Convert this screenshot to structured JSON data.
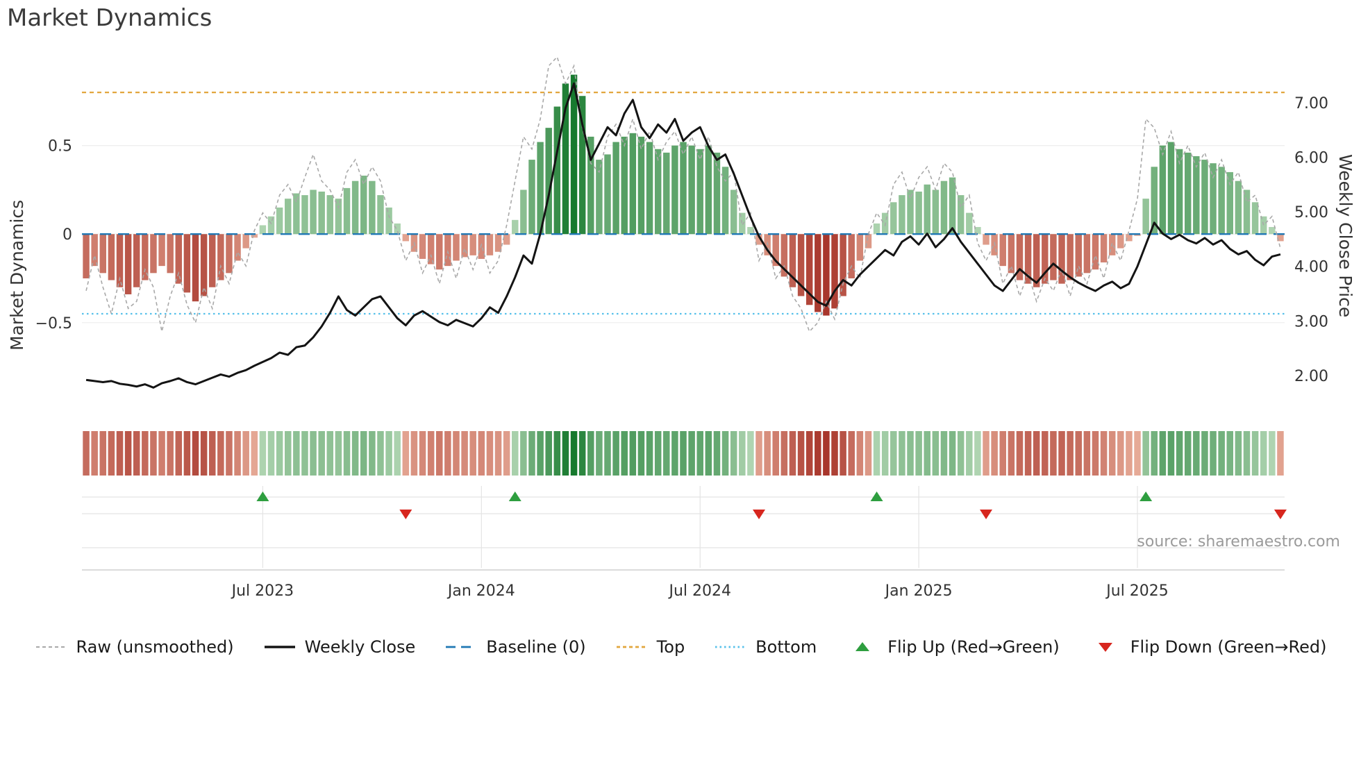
{
  "chart_data": {
    "type": "bar+line",
    "title": "Market Dynamics",
    "source": "source: sharemaestro.com",
    "left_axis": {
      "label": "Market Dynamics",
      "range": [
        -1.03,
        1.02
      ],
      "ticks": [
        {
          "v": 0.5,
          "label": "0.5"
        },
        {
          "v": 0,
          "label": "0"
        },
        {
          "v": -0.5,
          "label": "−0.5"
        }
      ]
    },
    "right_axis": {
      "label": "Weekly Close Price",
      "range": [
        1.25,
        7.9
      ],
      "ticks": [
        {
          "v": 7,
          "label": "7.00"
        },
        {
          "v": 6,
          "label": "6.00"
        },
        {
          "v": 5,
          "label": "5.00"
        },
        {
          "v": 4,
          "label": "4.00"
        },
        {
          "v": 3,
          "label": "3.00"
        },
        {
          "v": 2,
          "label": "2.00"
        }
      ]
    },
    "x_ticks": [
      {
        "week": 21,
        "label": "Jul 2023"
      },
      {
        "week": 47,
        "label": "Jan 2024"
      },
      {
        "week": 73,
        "label": "Jul 2024"
      },
      {
        "week": 99,
        "label": "Jan 2025"
      },
      {
        "week": 125,
        "label": "Jul 2025"
      }
    ],
    "reference_lines": {
      "baseline": {
        "value": 0,
        "label": "Baseline (0)",
        "color": "#1f77b4"
      },
      "top": {
        "value": 0.8,
        "label": "Top",
        "color": "#e2a63d"
      },
      "bottom": {
        "value": -0.45,
        "label": "Bottom",
        "color": "#55c0ea"
      }
    },
    "colors": {
      "green_light": "#d2e9cf",
      "green_dark": "#177a2e",
      "red_light": "#f3c3ae",
      "red_dark": "#a32c22",
      "raw_line": "#a8a8a8",
      "close_line": "#141414",
      "flip_up": "#2e9e3f",
      "flip_down": "#d7261e",
      "grid": "#e4e4e4"
    },
    "series": {
      "oscillator": {
        "name": "Market Dynamics oscillator (weekly bars)",
        "values": [
          -0.25,
          -0.18,
          -0.22,
          -0.26,
          -0.3,
          -0.34,
          -0.3,
          -0.26,
          -0.22,
          -0.18,
          -0.22,
          -0.28,
          -0.33,
          -0.38,
          -0.35,
          -0.3,
          -0.26,
          -0.22,
          -0.15,
          -0.08,
          -0.02,
          0.05,
          0.1,
          0.15,
          0.2,
          0.23,
          0.22,
          0.25,
          0.24,
          0.22,
          0.2,
          0.26,
          0.3,
          0.33,
          0.3,
          0.22,
          0.15,
          0.06,
          -0.04,
          -0.1,
          -0.14,
          -0.17,
          -0.2,
          -0.18,
          -0.15,
          -0.13,
          -0.12,
          -0.14,
          -0.12,
          -0.1,
          -0.06,
          0.08,
          0.25,
          0.42,
          0.52,
          0.6,
          0.72,
          0.85,
          0.9,
          0.78,
          0.55,
          0.42,
          0.45,
          0.52,
          0.55,
          0.57,
          0.55,
          0.52,
          0.48,
          0.46,
          0.5,
          0.52,
          0.5,
          0.48,
          0.5,
          0.46,
          0.38,
          0.25,
          0.12,
          0.04,
          -0.06,
          -0.12,
          -0.18,
          -0.24,
          -0.3,
          -0.35,
          -0.4,
          -0.44,
          -0.46,
          -0.42,
          -0.35,
          -0.25,
          -0.15,
          -0.08,
          0.06,
          0.12,
          0.18,
          0.22,
          0.25,
          0.24,
          0.28,
          0.25,
          0.3,
          0.32,
          0.22,
          0.12,
          0.04,
          -0.06,
          -0.12,
          -0.18,
          -0.22,
          -0.26,
          -0.28,
          -0.3,
          -0.28,
          -0.26,
          -0.28,
          -0.26,
          -0.24,
          -0.22,
          -0.2,
          -0.16,
          -0.12,
          -0.08,
          -0.04,
          -0.01,
          0.2,
          0.38,
          0.5,
          0.52,
          0.48,
          0.46,
          0.44,
          0.42,
          0.4,
          0.38,
          0.35,
          0.3,
          0.25,
          0.18,
          0.1,
          0.04,
          -0.04
        ]
      },
      "raw": {
        "name": "Raw (unsmoothed)",
        "values": [
          -0.32,
          -0.12,
          -0.3,
          -0.45,
          -0.25,
          -0.42,
          -0.38,
          -0.2,
          -0.3,
          -0.55,
          -0.35,
          -0.22,
          -0.4,
          -0.5,
          -0.3,
          -0.42,
          -0.18,
          -0.28,
          -0.1,
          -0.18,
          0.02,
          0.12,
          0.06,
          0.22,
          0.28,
          0.18,
          0.32,
          0.45,
          0.3,
          0.25,
          0.15,
          0.35,
          0.42,
          0.28,
          0.38,
          0.3,
          0.1,
          0.02,
          -0.15,
          -0.05,
          -0.22,
          -0.12,
          -0.28,
          -0.1,
          -0.25,
          -0.08,
          -0.2,
          -0.06,
          -0.22,
          -0.15,
          0.05,
          0.3,
          0.55,
          0.48,
          0.65,
          0.95,
          1.0,
          0.85,
          0.95,
          0.6,
          0.4,
          0.35,
          0.55,
          0.62,
          0.5,
          0.65,
          0.48,
          0.58,
          0.42,
          0.52,
          0.58,
          0.45,
          0.55,
          0.42,
          0.55,
          0.38,
          0.3,
          0.35,
          0.05,
          0.12,
          -0.15,
          -0.05,
          -0.25,
          -0.18,
          -0.35,
          -0.42,
          -0.55,
          -0.5,
          -0.38,
          -0.48,
          -0.28,
          -0.18,
          -0.25,
          0.0,
          0.12,
          0.05,
          0.28,
          0.35,
          0.2,
          0.32,
          0.38,
          0.25,
          0.4,
          0.35,
          0.15,
          0.22,
          -0.05,
          -0.15,
          -0.05,
          -0.28,
          -0.18,
          -0.35,
          -0.22,
          -0.38,
          -0.25,
          -0.32,
          -0.2,
          -0.35,
          -0.18,
          -0.28,
          -0.12,
          -0.25,
          -0.05,
          -0.15,
          0.02,
          0.2,
          0.65,
          0.6,
          0.45,
          0.58,
          0.4,
          0.5,
          0.38,
          0.46,
          0.32,
          0.42,
          0.28,
          0.35,
          0.18,
          0.22,
          0.05,
          0.1,
          -0.08
        ]
      },
      "weekly_close": {
        "name": "Weekly Close",
        "values": [
          1.92,
          1.9,
          1.88,
          1.9,
          1.85,
          1.83,
          1.8,
          1.84,
          1.78,
          1.86,
          1.9,
          1.95,
          1.88,
          1.84,
          1.9,
          1.96,
          2.02,
          1.98,
          2.05,
          2.1,
          2.18,
          2.25,
          2.32,
          2.42,
          2.38,
          2.52,
          2.55,
          2.7,
          2.9,
          3.15,
          3.45,
          3.2,
          3.1,
          3.25,
          3.4,
          3.45,
          3.25,
          3.05,
          2.92,
          3.1,
          3.18,
          3.08,
          2.98,
          2.92,
          3.02,
          2.96,
          2.9,
          3.05,
          3.25,
          3.15,
          3.45,
          3.8,
          4.2,
          4.05,
          4.6,
          5.3,
          6.1,
          6.9,
          7.35,
          6.6,
          5.95,
          6.25,
          6.55,
          6.4,
          6.8,
          7.05,
          6.55,
          6.35,
          6.6,
          6.45,
          6.7,
          6.3,
          6.45,
          6.55,
          6.2,
          5.95,
          6.05,
          5.7,
          5.3,
          4.9,
          4.55,
          4.3,
          4.1,
          3.95,
          3.8,
          3.65,
          3.5,
          3.35,
          3.28,
          3.55,
          3.75,
          3.65,
          3.85,
          4.0,
          4.15,
          4.3,
          4.2,
          4.45,
          4.55,
          4.4,
          4.6,
          4.35,
          4.5,
          4.7,
          4.45,
          4.25,
          4.05,
          3.85,
          3.65,
          3.55,
          3.75,
          3.95,
          3.82,
          3.7,
          3.88,
          4.05,
          3.92,
          3.8,
          3.7,
          3.62,
          3.55,
          3.65,
          3.72,
          3.6,
          3.68,
          4.0,
          4.4,
          4.8,
          4.6,
          4.5,
          4.58,
          4.48,
          4.42,
          4.52,
          4.4,
          4.48,
          4.32,
          4.22,
          4.28,
          4.12,
          4.02,
          4.18,
          4.22
        ]
      }
    },
    "markers": {
      "flip_up": {
        "label": "Flip Up (Red→Green)",
        "weeks": [
          21,
          51,
          94,
          126
        ]
      },
      "flip_down": {
        "label": "Flip Down (Green→Red)",
        "weeks": [
          38,
          80,
          107,
          142
        ]
      }
    },
    "legend": [
      {
        "label": "Raw (unsmoothed)",
        "kind": "line",
        "color": "#a8a8a8",
        "dash": "5 4",
        "width": 2
      },
      {
        "label": "Weekly Close",
        "kind": "line",
        "color": "#141414",
        "dash": "",
        "width": 3.5
      },
      {
        "label": "Baseline (0)",
        "kind": "line",
        "color": "#1f77b4",
        "dash": "14 8",
        "width": 2.8
      },
      {
        "label": "Top",
        "kind": "line",
        "color": "#e2a63d",
        "dash": "5 4",
        "width": 2.8
      },
      {
        "label": "Bottom",
        "kind": "line",
        "color": "#55c0ea",
        "dash": "2.5 4",
        "width": 2.8
      },
      {
        "label": "Flip Up (Red→Green)",
        "kind": "tri-up",
        "color": "#2e9e3f"
      },
      {
        "label": "Flip Down (Green→Red)",
        "kind": "tri-down",
        "color": "#d7261e"
      }
    ]
  }
}
